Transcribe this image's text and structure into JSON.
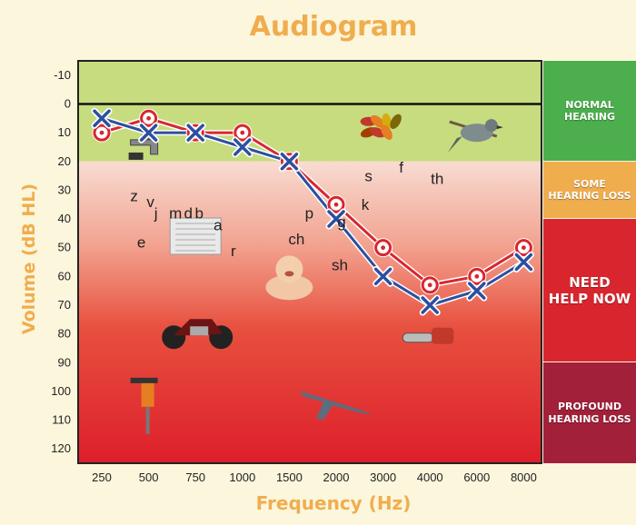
{
  "chart_data": {
    "type": "line",
    "title": "Audiogram",
    "xlabel": "Frequency (Hz)",
    "ylabel": "Volume  (dB HL)",
    "categories": [
      "250",
      "500",
      "750",
      "1000",
      "1500",
      "2000",
      "3000",
      "4000",
      "6000",
      "8000"
    ],
    "y_ticks": [
      "-10",
      "0",
      "10",
      "20",
      "30",
      "40",
      "50",
      "60",
      "70",
      "80",
      "90",
      "100",
      "110",
      "120"
    ],
    "ylim": [
      -15,
      125
    ],
    "y_inverted": true,
    "grid": false,
    "series": [
      {
        "marker": "circle",
        "color": "#d9262e",
        "values": [
          10,
          5,
          10,
          10,
          20,
          35,
          50,
          63,
          60,
          50
        ]
      },
      {
        "marker": "x",
        "color": "#2c4fa0",
        "values": [
          5,
          10,
          10,
          15,
          20,
          40,
          60,
          70,
          65,
          55
        ]
      }
    ],
    "sounds": [
      {
        "text": "z",
        "x": "500",
        "y": 32
      },
      {
        "text": "v",
        "x": "500",
        "y": 34
      },
      {
        "text": "j",
        "x": "500",
        "y": 38
      },
      {
        "text": "m",
        "x": "750",
        "y": 38
      },
      {
        "text": "d",
        "x": "750",
        "y": 38
      },
      {
        "text": "b",
        "x": "750",
        "y": 38
      },
      {
        "text": "a",
        "x": "1000",
        "y": 42
      },
      {
        "text": "e",
        "x": "500",
        "y": 48
      },
      {
        "text": "r",
        "x": "1000",
        "y": 51
      },
      {
        "text": "p",
        "x": "1500",
        "y": 38
      },
      {
        "text": "k",
        "x": "2000",
        "y": 35
      },
      {
        "text": "g",
        "x": "2000",
        "y": 41
      },
      {
        "text": "ch",
        "x": "1500",
        "y": 47
      },
      {
        "text": "sh",
        "x": "2000",
        "y": 56
      },
      {
        "text": "f",
        "x": "3000",
        "y": 22
      },
      {
        "text": "s",
        "x": "3000",
        "y": 25
      },
      {
        "text": "th",
        "x": "4000",
        "y": 26
      }
    ],
    "hearing_bands": [
      {
        "label": [
          "NORMAL",
          "HEARING"
        ],
        "from": -15,
        "to": 20,
        "color": "#4cae4c"
      },
      {
        "label": [
          "SOME",
          "HEARING LOSS"
        ],
        "from": 20,
        "to": 40,
        "color": "#f0ad4e"
      },
      {
        "label": [
          "NEED",
          "HELP NOW"
        ],
        "from": 40,
        "to": 90,
        "color": "#d9262e"
      },
      {
        "label": [
          "PROFOUND",
          "HEARING LOSS"
        ],
        "from": 90,
        "to": 125,
        "color": "#a2203a"
      }
    ],
    "plot_zones": [
      {
        "from": -15,
        "to": 20,
        "color": "#c7dc7e"
      },
      {
        "from": 20,
        "to": 125,
        "color": "gradient-red"
      }
    ],
    "illustrations": [
      {
        "icon": "faucet-icon",
        "x": "500",
        "y": 15
      },
      {
        "icon": "air-conditioner-icon",
        "x": "750",
        "y": 46
      },
      {
        "icon": "leaves-icon",
        "x": "3000",
        "y": 8
      },
      {
        "icon": "bird-icon",
        "x": "6000",
        "y": 10
      },
      {
        "icon": "baby-icon",
        "x": "1500",
        "y": 60
      },
      {
        "icon": "motorcycle-icon",
        "x": "750",
        "y": 78
      },
      {
        "icon": "chainsaw-icon",
        "x": "4000",
        "y": 81
      },
      {
        "icon": "jackhammer-icon",
        "x": "500",
        "y": 106
      },
      {
        "icon": "jet-icon",
        "x": "2000",
        "y": 103
      }
    ]
  }
}
